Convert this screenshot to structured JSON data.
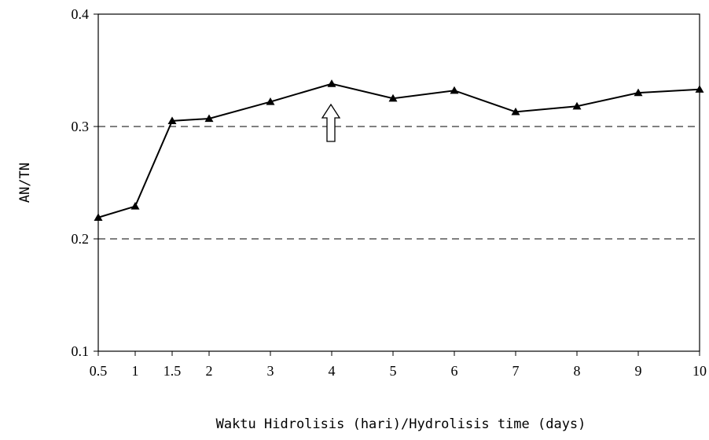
{
  "chart_data": {
    "type": "line",
    "title": "",
    "xlabel": "Waktu Hidrolisis (hari)/Hydrolisis time (days)",
    "ylabel": "AN/TN",
    "x_ticks": [
      "0.5",
      "1",
      "1.5",
      "2",
      "3",
      "4",
      "5",
      "6",
      "7",
      "8",
      "9",
      "10"
    ],
    "y_ticks": [
      "0.1",
      "0.2",
      "0.3",
      "0.4"
    ],
    "ylim": [
      0.1,
      0.4
    ],
    "gridlines_y": [
      0.2,
      0.3
    ],
    "grid_style": "dashed horizontal",
    "marker": "triangle",
    "series": [
      {
        "points": [
          {
            "x": "0.5",
            "y": 0.219
          },
          {
            "x": "1",
            "y": 0.229
          },
          {
            "x": "1.5",
            "y": 0.305
          },
          {
            "x": "2",
            "y": 0.307
          },
          {
            "x": "3",
            "y": 0.322
          },
          {
            "x": "4",
            "y": 0.338
          },
          {
            "x": "5",
            "y": 0.325
          },
          {
            "x": "6",
            "y": 0.332
          },
          {
            "x": "7",
            "y": 0.313
          },
          {
            "x": "8",
            "y": 0.318
          },
          {
            "x": "9",
            "y": 0.33
          },
          {
            "x": "10",
            "y": 0.333
          }
        ]
      }
    ],
    "annotation": {
      "type": "up-arrow",
      "points_to_x": "4"
    }
  }
}
